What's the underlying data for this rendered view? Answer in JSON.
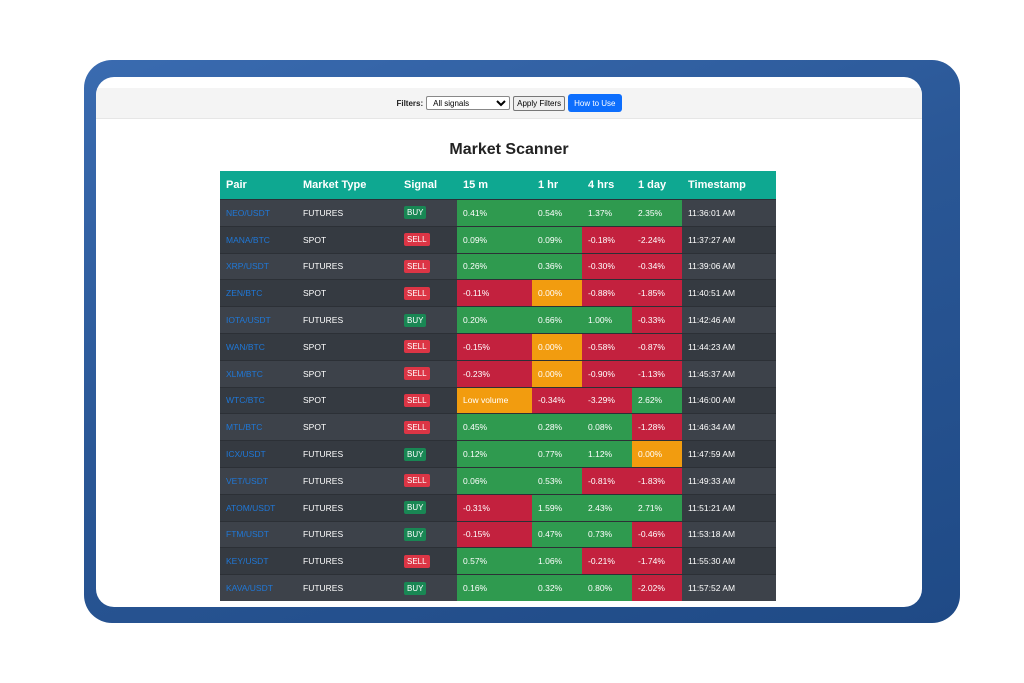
{
  "filters": {
    "label": "Filters:",
    "select_value": "All signals",
    "apply_label": "Apply Filters",
    "howto_label": "How to Use"
  },
  "title": "Market Scanner",
  "colors": {
    "header": "#0ea891",
    "positive": "#2f9a4f",
    "negative": "#c3213e",
    "neutral": "#f29c0f",
    "buy": "#198754",
    "sell": "#dc3545",
    "frame": "#2a5796"
  },
  "table": {
    "columns": [
      "Pair",
      "Market Type",
      "Signal",
      "15 m",
      "1 hr",
      "4 hrs",
      "1 day",
      "Timestamp"
    ],
    "rows": [
      {
        "pair": "NEO/USDT",
        "type": "FUTURES",
        "signal": "BUY",
        "m15": "0.41%",
        "h1": "0.54%",
        "h4": "1.37%",
        "d1": "2.35%",
        "ts": "11:36:01 AM",
        "cls": [
          "pos",
          "pos",
          "pos",
          "pos"
        ]
      },
      {
        "pair": "MANA/BTC",
        "type": "SPOT",
        "signal": "SELL",
        "m15": "0.09%",
        "h1": "0.09%",
        "h4": "-0.18%",
        "d1": "-2.24%",
        "ts": "11:37:27 AM",
        "cls": [
          "pos",
          "pos",
          "neg",
          "neg"
        ]
      },
      {
        "pair": "XRP/USDT",
        "type": "FUTURES",
        "signal": "SELL",
        "m15": "0.26%",
        "h1": "0.36%",
        "h4": "-0.30%",
        "d1": "-0.34%",
        "ts": "11:39:06 AM",
        "cls": [
          "pos",
          "pos",
          "neg",
          "neg"
        ]
      },
      {
        "pair": "ZEN/BTC",
        "type": "SPOT",
        "signal": "SELL",
        "m15": "-0.11%",
        "h1": "0.00%",
        "h4": "-0.88%",
        "d1": "-1.85%",
        "ts": "11:40:51 AM",
        "cls": [
          "neg",
          "neu",
          "neg",
          "neg"
        ]
      },
      {
        "pair": "IOTA/USDT",
        "type": "FUTURES",
        "signal": "BUY",
        "m15": "0.20%",
        "h1": "0.66%",
        "h4": "1.00%",
        "d1": "-0.33%",
        "ts": "11:42:46 AM",
        "cls": [
          "pos",
          "pos",
          "pos",
          "neg"
        ]
      },
      {
        "pair": "WAN/BTC",
        "type": "SPOT",
        "signal": "SELL",
        "m15": "-0.15%",
        "h1": "0.00%",
        "h4": "-0.58%",
        "d1": "-0.87%",
        "ts": "11:44:23 AM",
        "cls": [
          "neg",
          "neu",
          "neg",
          "neg"
        ]
      },
      {
        "pair": "XLM/BTC",
        "type": "SPOT",
        "signal": "SELL",
        "m15": "-0.23%",
        "h1": "0.00%",
        "h4": "-0.90%",
        "d1": "-1.13%",
        "ts": "11:45:37 AM",
        "cls": [
          "neg",
          "neu",
          "neg",
          "neg"
        ]
      },
      {
        "pair": "WTC/BTC",
        "type": "SPOT",
        "signal": "SELL",
        "m15": "Low volume",
        "h1": "-0.34%",
        "h4": "-3.29%",
        "d1": "2.62%",
        "ts": "11:46:00 AM",
        "cls": [
          "neu",
          "neg",
          "neg",
          "pos"
        ]
      },
      {
        "pair": "MTL/BTC",
        "type": "SPOT",
        "signal": "SELL",
        "m15": "0.45%",
        "h1": "0.28%",
        "h4": "0.08%",
        "d1": "-1.28%",
        "ts": "11:46:34 AM",
        "cls": [
          "pos",
          "pos",
          "pos",
          "neg"
        ]
      },
      {
        "pair": "ICX/USDT",
        "type": "FUTURES",
        "signal": "BUY",
        "m15": "0.12%",
        "h1": "0.77%",
        "h4": "1.12%",
        "d1": "0.00%",
        "ts": "11:47:59 AM",
        "cls": [
          "pos",
          "pos",
          "pos",
          "neu"
        ]
      },
      {
        "pair": "VET/USDT",
        "type": "FUTURES",
        "signal": "SELL",
        "m15": "0.06%",
        "h1": "0.53%",
        "h4": "-0.81%",
        "d1": "-1.83%",
        "ts": "11:49:33 AM",
        "cls": [
          "pos",
          "pos",
          "neg",
          "neg"
        ]
      },
      {
        "pair": "ATOM/USDT",
        "type": "FUTURES",
        "signal": "BUY",
        "m15": "-0.31%",
        "h1": "1.59%",
        "h4": "2.43%",
        "d1": "2.71%",
        "ts": "11:51:21 AM",
        "cls": [
          "neg",
          "pos",
          "pos",
          "pos"
        ]
      },
      {
        "pair": "FTM/USDT",
        "type": "FUTURES",
        "signal": "BUY",
        "m15": "-0.15%",
        "h1": "0.47%",
        "h4": "0.73%",
        "d1": "-0.46%",
        "ts": "11:53:18 AM",
        "cls": [
          "neg",
          "pos",
          "pos",
          "neg"
        ]
      },
      {
        "pair": "KEY/USDT",
        "type": "FUTURES",
        "signal": "SELL",
        "m15": "0.57%",
        "h1": "1.06%",
        "h4": "-0.21%",
        "d1": "-1.74%",
        "ts": "11:55:30 AM",
        "cls": [
          "pos",
          "pos",
          "neg",
          "neg"
        ]
      },
      {
        "pair": "KAVA/USDT",
        "type": "FUTURES",
        "signal": "BUY",
        "m15": "0.16%",
        "h1": "0.32%",
        "h4": "0.80%",
        "d1": "-2.02%",
        "ts": "11:57:52 AM",
        "cls": [
          "pos",
          "pos",
          "pos",
          "neg"
        ]
      }
    ]
  }
}
